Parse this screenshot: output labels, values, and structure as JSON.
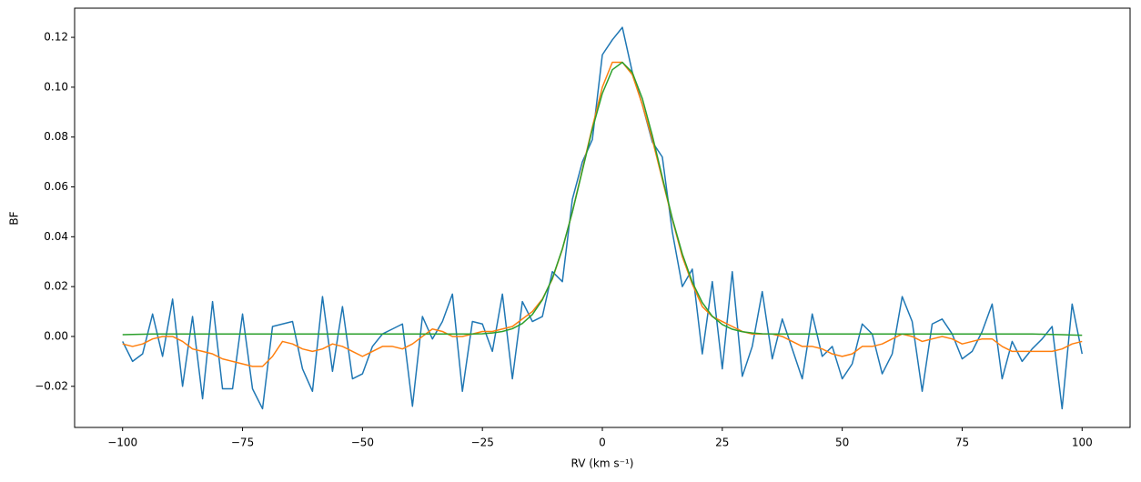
{
  "chart_data": {
    "type": "line",
    "x_label": "RV (km s⁻¹)",
    "y_label": "BF",
    "x": [
      -100,
      -97.92,
      -95.83,
      -93.75,
      -91.67,
      -89.58,
      -87.5,
      -85.42,
      -83.33,
      -81.25,
      -79.17,
      -77.08,
      -75,
      -72.92,
      -70.83,
      -68.75,
      -66.67,
      -64.58,
      -62.5,
      -60.42,
      -58.33,
      -56.25,
      -54.17,
      -52.08,
      -50,
      -47.92,
      -45.83,
      -43.75,
      -41.67,
      -39.58,
      -37.5,
      -35.42,
      -33.33,
      -31.25,
      -29.17,
      -27.08,
      -25,
      -22.92,
      -20.83,
      -18.75,
      -16.67,
      -14.58,
      -12.5,
      -10.42,
      -8.33,
      -6.25,
      -4.17,
      -2.08,
      0,
      2.08,
      4.17,
      6.25,
      8.33,
      10.42,
      12.5,
      14.58,
      16.67,
      18.75,
      20.83,
      22.92,
      25,
      27.08,
      29.17,
      31.25,
      33.33,
      35.42,
      37.5,
      39.58,
      41.67,
      43.75,
      45.83,
      47.92,
      50,
      52.08,
      54.17,
      56.25,
      58.33,
      60.42,
      62.5,
      64.58,
      66.67,
      68.75,
      70.83,
      72.92,
      75,
      77.08,
      79.17,
      81.25,
      83.33,
      85.42,
      87.5,
      89.58,
      91.67,
      93.75,
      95.83,
      97.92,
      100
    ],
    "series": [
      {
        "color": "#1f77b4",
        "values": [
          -0.002,
          -0.01,
          -0.007,
          0.009,
          -0.008,
          0.015,
          -0.02,
          0.008,
          -0.025,
          0.014,
          -0.021,
          -0.021,
          0.009,
          -0.021,
          -0.029,
          0.004,
          0.005,
          0.006,
          -0.013,
          -0.022,
          0.016,
          -0.014,
          0.012,
          -0.017,
          -0.015,
          -0.004,
          0.001,
          0.003,
          0.005,
          -0.028,
          0.008,
          -0.001,
          0.006,
          0.017,
          -0.022,
          0.006,
          0.005,
          -0.006,
          0.017,
          -0.017,
          0.014,
          0.006,
          0.008,
          0.026,
          0.022,
          0.055,
          0.07,
          0.079,
          0.113,
          0.119,
          0.124,
          0.106,
          0.093,
          0.078,
          0.072,
          0.042,
          0.02,
          0.027,
          -0.007,
          0.022,
          -0.013,
          0.026,
          -0.016,
          -0.004,
          0.018,
          -0.009,
          0.007,
          -0.005,
          -0.017,
          0.009,
          -0.008,
          -0.004,
          -0.017,
          -0.011,
          0.005,
          0.001,
          -0.015,
          -0.007,
          0.016,
          0.006,
          -0.022,
          0.005,
          0.007,
          0.001,
          -0.009,
          -0.006,
          0.002,
          0.013,
          -0.017,
          -0.002,
          -0.01,
          -0.005,
          -0.001,
          0.004,
          -0.029,
          0.013,
          -0.007
        ]
      },
      {
        "color": "#ff7f0e",
        "values": [
          -0.003,
          -0.004,
          -0.003,
          -0.001,
          0.0,
          0.0,
          -0.002,
          -0.005,
          -0.006,
          -0.007,
          -0.009,
          -0.01,
          -0.011,
          -0.012,
          -0.012,
          -0.008,
          -0.002,
          -0.003,
          -0.005,
          -0.006,
          -0.005,
          -0.003,
          -0.004,
          -0.006,
          -0.008,
          -0.006,
          -0.004,
          -0.004,
          -0.005,
          -0.003,
          0.0,
          0.003,
          0.002,
          0.0,
          0.0,
          0.001,
          0.002,
          0.002,
          0.003,
          0.004,
          0.007,
          0.01,
          0.015,
          0.023,
          0.035,
          0.05,
          0.067,
          0.084,
          0.1,
          0.11,
          0.11,
          0.105,
          0.093,
          0.079,
          0.063,
          0.047,
          0.032,
          0.021,
          0.012,
          0.008,
          0.006,
          0.004,
          0.002,
          0.001,
          0.001,
          0.001,
          0.0,
          -0.002,
          -0.004,
          -0.004,
          -0.005,
          -0.007,
          -0.008,
          -0.007,
          -0.004,
          -0.004,
          -0.003,
          -0.001,
          0.001,
          0.0,
          -0.002,
          -0.001,
          0.0,
          -0.001,
          -0.003,
          -0.002,
          -0.001,
          -0.001,
          -0.004,
          -0.006,
          -0.006,
          -0.006,
          -0.006,
          -0.006,
          -0.005,
          -0.003,
          -0.002
        ]
      },
      {
        "color": "#2ca02c",
        "values": [
          0.0007,
          0.0008,
          0.0009,
          0.001,
          0.001,
          0.001,
          0.001,
          0.001,
          0.001,
          0.001,
          0.001,
          0.001,
          0.001,
          0.001,
          0.001,
          0.001,
          0.001,
          0.001,
          0.001,
          0.001,
          0.001,
          0.001,
          0.001,
          0.001,
          0.001,
          0.001,
          0.001,
          0.001,
          0.001,
          0.001,
          0.001,
          0.001,
          0.001,
          0.001,
          0.001,
          0.001,
          0.0011,
          0.0014,
          0.002,
          0.0031,
          0.0052,
          0.0088,
          0.0147,
          0.0233,
          0.0352,
          0.0499,
          0.0665,
          0.0832,
          0.0975,
          0.107,
          0.11,
          0.1059,
          0.0955,
          0.0806,
          0.0639,
          0.0474,
          0.0331,
          0.0218,
          0.0136,
          0.0081,
          0.0048,
          0.0029,
          0.0019,
          0.0014,
          0.0011,
          0.001,
          0.001,
          0.001,
          0.001,
          0.001,
          0.001,
          0.001,
          0.001,
          0.001,
          0.001,
          0.001,
          0.001,
          0.001,
          0.001,
          0.001,
          0.001,
          0.001,
          0.001,
          0.001,
          0.001,
          0.001,
          0.001,
          0.001,
          0.001,
          0.001,
          0.001,
          0.001,
          0.0009,
          0.0008,
          0.0007,
          0.0006,
          0.0005
        ]
      }
    ],
    "xlim": [
      -110,
      110
    ],
    "ylim": [
      -0.0365,
      0.1317
    ],
    "xticks": [
      {
        "value": -100,
        "label": "−100"
      },
      {
        "value": -75,
        "label": "−75"
      },
      {
        "value": -50,
        "label": "−50"
      },
      {
        "value": -25,
        "label": "−25"
      },
      0,
      25,
      50,
      75,
      100
    ],
    "yticks": [
      {
        "value": -0.02,
        "label": "−0.02"
      },
      {
        "value": 0,
        "label": "0.00"
      },
      0.02,
      0.04,
      0.06,
      0.08,
      {
        "value": 0.1,
        "label": "0.10"
      },
      0.12
    ],
    "grid": false
  }
}
